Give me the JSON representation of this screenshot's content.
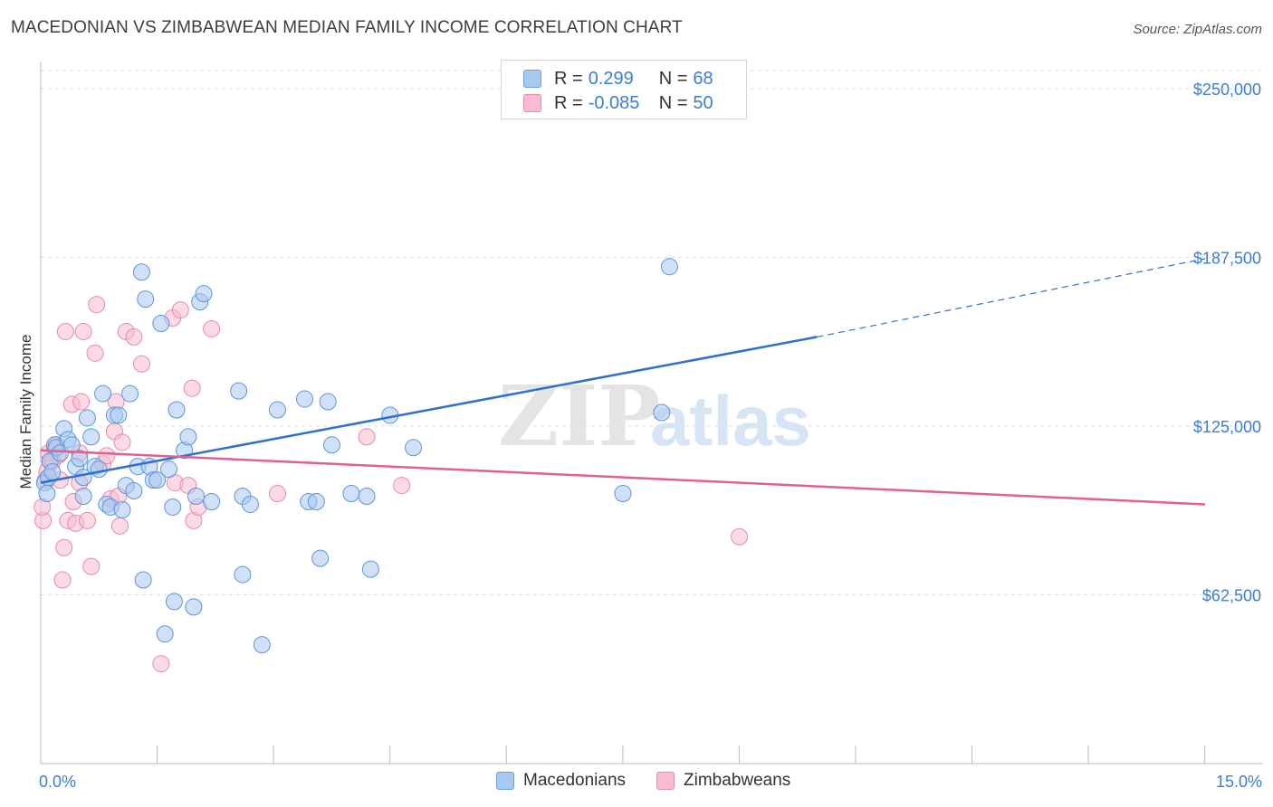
{
  "title": "MACEDONIAN VS ZIMBABWEAN MEDIAN FAMILY INCOME CORRELATION CHART",
  "source": "Source: ZipAtlas.com",
  "watermark": {
    "zip": "ZIP",
    "atlas": "atlas"
  },
  "legend": {
    "rows": [
      {
        "r_label": "R =",
        "r_value": "0.299",
        "n_label": "N =",
        "n_value": "68",
        "fill": "#a9c8f0",
        "stroke": "#6a9fe0"
      },
      {
        "r_label": "R =",
        "r_value": "-0.085",
        "n_label": "N =",
        "n_value": "50",
        "fill": "#f7bcd0",
        "stroke": "#e88aa8"
      }
    ]
  },
  "bottom_legend": [
    "Macedonians",
    "Zimbabweans"
  ],
  "colors": {
    "blue_fill": "#a9c8f0",
    "blue_stroke": "#5b95dc",
    "blue_line": "#2f6fce",
    "pink_fill": "#f7bcd0",
    "pink_stroke": "#e88aa8",
    "pink_line": "#e2608e",
    "tick_text": "#3b7dd8",
    "grid": "#dddddd"
  },
  "chart_data": {
    "type": "scatter",
    "title": "MACEDONIAN VS ZIMBABWEAN MEDIAN FAMILY INCOME CORRELATION CHART",
    "xlabel": "",
    "ylabel": "Median Family Income",
    "xlim": [
      0,
      15
    ],
    "ylim": [
      0,
      262000
    ],
    "x_tick_labels": [
      "0.0%",
      "15.0%"
    ],
    "y_ticks": [
      62500,
      125000,
      187500,
      250000
    ],
    "y_tick_labels": [
      "$62,500",
      "$125,000",
      "$187,500",
      "$250,000"
    ],
    "series": [
      {
        "name": "Macedonians",
        "points": [
          [
            0.05,
            104000
          ],
          [
            0.08,
            100000
          ],
          [
            0.1,
            106000
          ],
          [
            0.12,
            112000
          ],
          [
            0.15,
            108000
          ],
          [
            0.18,
            118000
          ],
          [
            0.2,
            117000
          ],
          [
            0.25,
            115000
          ],
          [
            0.3,
            124000
          ],
          [
            0.35,
            120000
          ],
          [
            0.4,
            118000
          ],
          [
            0.45,
            110000
          ],
          [
            0.5,
            113000
          ],
          [
            0.55,
            106000
          ],
          [
            0.55,
            99000
          ],
          [
            0.6,
            128000
          ],
          [
            0.65,
            121000
          ],
          [
            0.7,
            110000
          ],
          [
            0.75,
            109000
          ],
          [
            0.8,
            137000
          ],
          [
            0.85,
            96000
          ],
          [
            0.9,
            95000
          ],
          [
            0.95,
            129000
          ],
          [
            1.0,
            129000
          ],
          [
            1.05,
            94000
          ],
          [
            1.1,
            103000
          ],
          [
            1.15,
            137000
          ],
          [
            1.2,
            101000
          ],
          [
            1.25,
            110000
          ],
          [
            1.3,
            182000
          ],
          [
            1.32,
            68000
          ],
          [
            1.35,
            172000
          ],
          [
            1.4,
            110000
          ],
          [
            1.45,
            105000
          ],
          [
            1.5,
            105000
          ],
          [
            1.55,
            163000
          ],
          [
            1.6,
            48000
          ],
          [
            1.65,
            109000
          ],
          [
            1.7,
            95000
          ],
          [
            1.72,
            60000
          ],
          [
            1.75,
            131000
          ],
          [
            1.85,
            116000
          ],
          [
            1.9,
            121000
          ],
          [
            1.97,
            58000
          ],
          [
            2.0,
            99000
          ],
          [
            2.05,
            171000
          ],
          [
            2.1,
            174000
          ],
          [
            2.2,
            97000
          ],
          [
            2.55,
            138000
          ],
          [
            2.6,
            99000
          ],
          [
            2.6,
            70000
          ],
          [
            2.7,
            96000
          ],
          [
            2.85,
            44000
          ],
          [
            3.05,
            131000
          ],
          [
            3.4,
            135000
          ],
          [
            3.45,
            97000
          ],
          [
            3.55,
            97000
          ],
          [
            3.6,
            76000
          ],
          [
            3.7,
            134000
          ],
          [
            3.75,
            118000
          ],
          [
            4.0,
            100000
          ],
          [
            4.2,
            99000
          ],
          [
            4.25,
            72000
          ],
          [
            4.5,
            129000
          ],
          [
            4.8,
            117000
          ],
          [
            8.0,
            130000
          ],
          [
            8.1,
            184000
          ],
          [
            7.5,
            100000
          ]
        ]
      },
      {
        "name": "Zimbabweans",
        "points": [
          [
            0.03,
            90000
          ],
          [
            0.06,
            105000
          ],
          [
            0.08,
            108000
          ],
          [
            0.1,
            115000
          ],
          [
            0.12,
            112000
          ],
          [
            0.18,
            117000
          ],
          [
            0.2,
            118000
          ],
          [
            0.22,
            114000
          ],
          [
            0.25,
            105000
          ],
          [
            0.28,
            68000
          ],
          [
            0.3,
            80000
          ],
          [
            0.32,
            160000
          ],
          [
            0.35,
            90000
          ],
          [
            0.4,
            133000
          ],
          [
            0.42,
            97000
          ],
          [
            0.45,
            89000
          ],
          [
            0.5,
            104000
          ],
          [
            0.52,
            134000
          ],
          [
            0.55,
            160000
          ],
          [
            0.6,
            90000
          ],
          [
            0.65,
            73000
          ],
          [
            0.7,
            152000
          ],
          [
            0.72,
            170000
          ],
          [
            0.8,
            111000
          ],
          [
            0.85,
            114000
          ],
          [
            0.9,
            98000
          ],
          [
            0.95,
            123000
          ],
          [
            0.97,
            134000
          ],
          [
            1.0,
            99000
          ],
          [
            1.02,
            88000
          ],
          [
            1.05,
            119000
          ],
          [
            1.1,
            160000
          ],
          [
            1.2,
            158000
          ],
          [
            1.3,
            148000
          ],
          [
            1.55,
            37000
          ],
          [
            1.7,
            165000
          ],
          [
            1.73,
            104000
          ],
          [
            1.8,
            168000
          ],
          [
            1.9,
            103000
          ],
          [
            1.95,
            139000
          ],
          [
            1.97,
            90000
          ],
          [
            2.03,
            95000
          ],
          [
            2.2,
            161000
          ],
          [
            3.05,
            100000
          ],
          [
            4.2,
            121000
          ],
          [
            4.65,
            103000
          ],
          [
            9.0,
            84000
          ],
          [
            0.5,
            115000
          ],
          [
            0.15,
            112000
          ],
          [
            0.02,
            95000
          ]
        ]
      }
    ],
    "trend_lines": [
      {
        "series": "Macedonians",
        "x": [
          0,
          10
        ],
        "y": [
          104000,
          158000
        ],
        "dashed_extension_x": [
          10,
          15
        ],
        "dashed_extension_y": [
          158000,
          187000
        ]
      },
      {
        "series": "Zimbabweans",
        "x": [
          0,
          15
        ],
        "y": [
          116000,
          96000
        ]
      }
    ]
  }
}
